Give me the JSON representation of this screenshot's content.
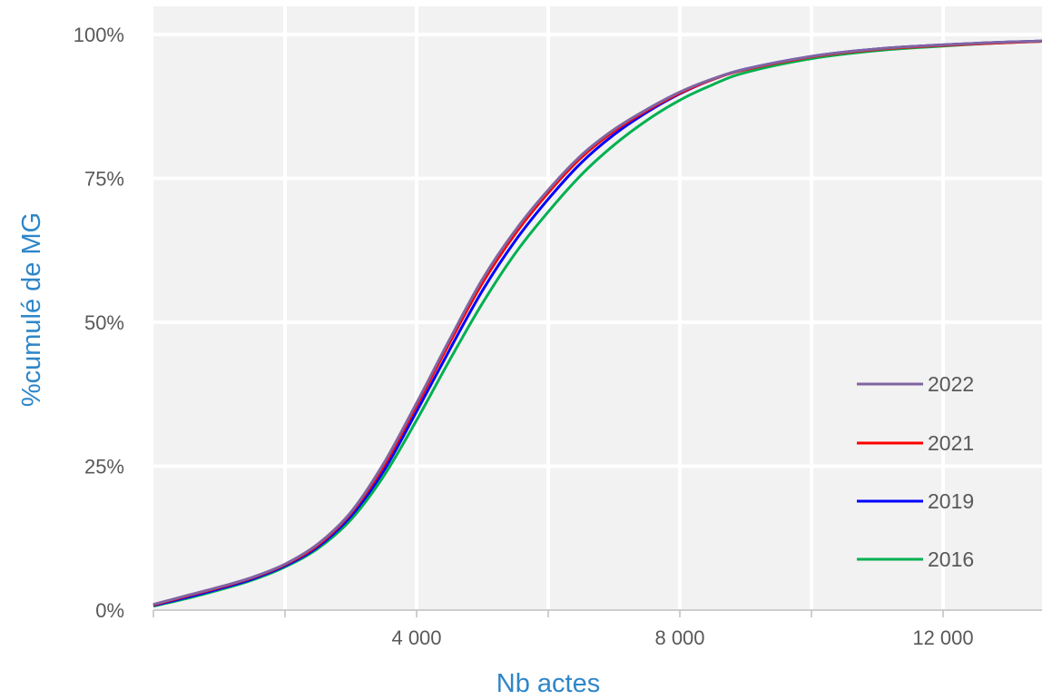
{
  "chart_data": {
    "type": "line",
    "title": "",
    "xlabel": "Nb actes",
    "ylabel": "%cumulé de MG",
    "xlim": [
      0,
      14000
    ],
    "ylim": [
      0,
      1
    ],
    "x_ticks": [
      0,
      2000,
      4000,
      6000,
      8000,
      10000,
      12000,
      14000
    ],
    "x_tick_labels": [
      {
        "value": 4000,
        "label": "4 000"
      },
      {
        "value": 8000,
        "label": "8 000"
      },
      {
        "value": 12000,
        "label": "12 000"
      }
    ],
    "y_ticks": [
      {
        "value": 0,
        "label": "0%"
      },
      {
        "value": 0.25,
        "label": "25%"
      },
      {
        "value": 0.5,
        "label": "50%"
      },
      {
        "value": 0.75,
        "label": "75%"
      },
      {
        "value": 1,
        "label": "100%"
      }
    ],
    "grid": true,
    "plot_background": "#f2f2f2",
    "legend_position": "bottom-right",
    "series": [
      {
        "name": "2022",
        "color": "#8064a2",
        "x": [
          0,
          500,
          1000,
          1500,
          2000,
          2500,
          3000,
          3500,
          4000,
          4500,
          5000,
          5500,
          6000,
          6500,
          7000,
          7500,
          8000,
          8500,
          9000,
          10000,
          11000,
          12000,
          13000,
          14000
        ],
        "y": [
          0.01,
          0.025,
          0.04,
          0.057,
          0.08,
          0.115,
          0.17,
          0.255,
          0.36,
          0.47,
          0.575,
          0.66,
          0.73,
          0.79,
          0.835,
          0.87,
          0.9,
          0.923,
          0.94,
          0.962,
          0.975,
          0.982,
          0.987,
          0.99
        ]
      },
      {
        "name": "2021",
        "color": "#ff0000",
        "x": [
          0,
          500,
          1000,
          1500,
          2000,
          2500,
          3000,
          3500,
          4000,
          4500,
          5000,
          5500,
          6000,
          6500,
          7000,
          7500,
          8000,
          8500,
          9000,
          10000,
          11000,
          12000,
          13000,
          14000
        ],
        "y": [
          0.009,
          0.024,
          0.039,
          0.056,
          0.079,
          0.113,
          0.168,
          0.25,
          0.355,
          0.464,
          0.568,
          0.654,
          0.725,
          0.786,
          0.832,
          0.868,
          0.898,
          0.922,
          0.939,
          0.961,
          0.974,
          0.981,
          0.986,
          0.99
        ]
      },
      {
        "name": "2019",
        "color": "#0000ff",
        "x": [
          0,
          500,
          1000,
          1500,
          2000,
          2500,
          3000,
          3500,
          4000,
          4500,
          5000,
          5500,
          6000,
          6500,
          7000,
          7500,
          8000,
          8500,
          9000,
          10000,
          11000,
          12000,
          13000,
          14000
        ],
        "y": [
          0.008,
          0.022,
          0.037,
          0.054,
          0.077,
          0.11,
          0.163,
          0.242,
          0.345,
          0.452,
          0.555,
          0.642,
          0.714,
          0.777,
          0.826,
          0.865,
          0.897,
          0.922,
          0.94,
          0.962,
          0.975,
          0.982,
          0.987,
          0.99
        ]
      },
      {
        "name": "2016",
        "color": "#00b050",
        "x": [
          0,
          500,
          1000,
          1500,
          2000,
          2500,
          3000,
          3500,
          4000,
          4500,
          5000,
          5500,
          6000,
          6500,
          7000,
          7500,
          8000,
          8500,
          9000,
          10000,
          11000,
          12000,
          13000,
          14000
        ],
        "y": [
          0.007,
          0.02,
          0.035,
          0.052,
          0.075,
          0.107,
          0.157,
          0.233,
          0.33,
          0.434,
          0.533,
          0.62,
          0.692,
          0.756,
          0.808,
          0.851,
          0.886,
          0.913,
          0.934,
          0.958,
          0.972,
          0.98,
          0.986,
          0.99
        ]
      }
    ]
  }
}
